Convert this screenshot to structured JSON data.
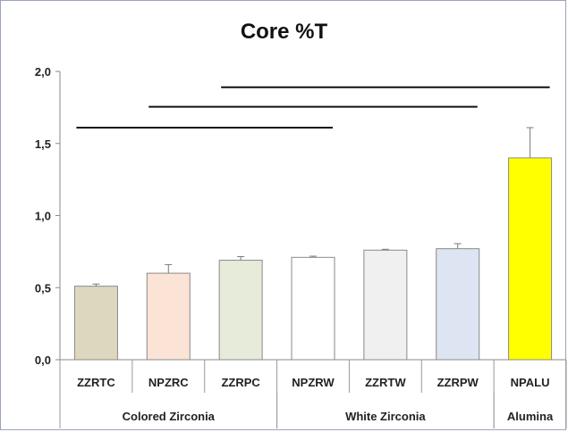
{
  "chart_data": {
    "type": "bar",
    "title": "Core %T",
    "xlabel": "",
    "ylabel": "",
    "ylim": [
      0,
      2.0
    ],
    "yticks": [
      "0,0",
      "0,5",
      "1,0",
      "1,5",
      "2,0"
    ],
    "yticks_values": [
      0,
      0.5,
      1.0,
      1.5,
      2.0
    ],
    "categories": [
      "ZZRTC",
      "NPZRC",
      "ZZRPC",
      "NPZRW",
      "ZZRTW",
      "ZZRPW",
      "NPALU"
    ],
    "values": [
      0.51,
      0.6,
      0.69,
      0.71,
      0.76,
      0.77,
      1.4
    ],
    "errors": [
      0.015,
      0.06,
      0.025,
      0.008,
      0.006,
      0.035,
      0.21
    ],
    "colors": [
      "#ddd7bf",
      "#fbe3d5",
      "#e6ecd9",
      "#ffffff",
      "#f0f0f0",
      "#dce5f1",
      "#ffff00"
    ],
    "groups": [
      {
        "label": "Colored Zirconia",
        "start": 0,
        "end": 2
      },
      {
        "label": "White Zirconia",
        "start": 3,
        "end": 5
      },
      {
        "label": "Alumina",
        "start": 6,
        "end": 6
      }
    ],
    "significance_lines": [
      {
        "y": 1.61,
        "from": 0,
        "to": 3
      },
      {
        "y": 1.755,
        "from": 1,
        "to": 5
      },
      {
        "y": 1.89,
        "from": 2,
        "to": 6
      }
    ],
    "grid": false,
    "legend": "none"
  }
}
